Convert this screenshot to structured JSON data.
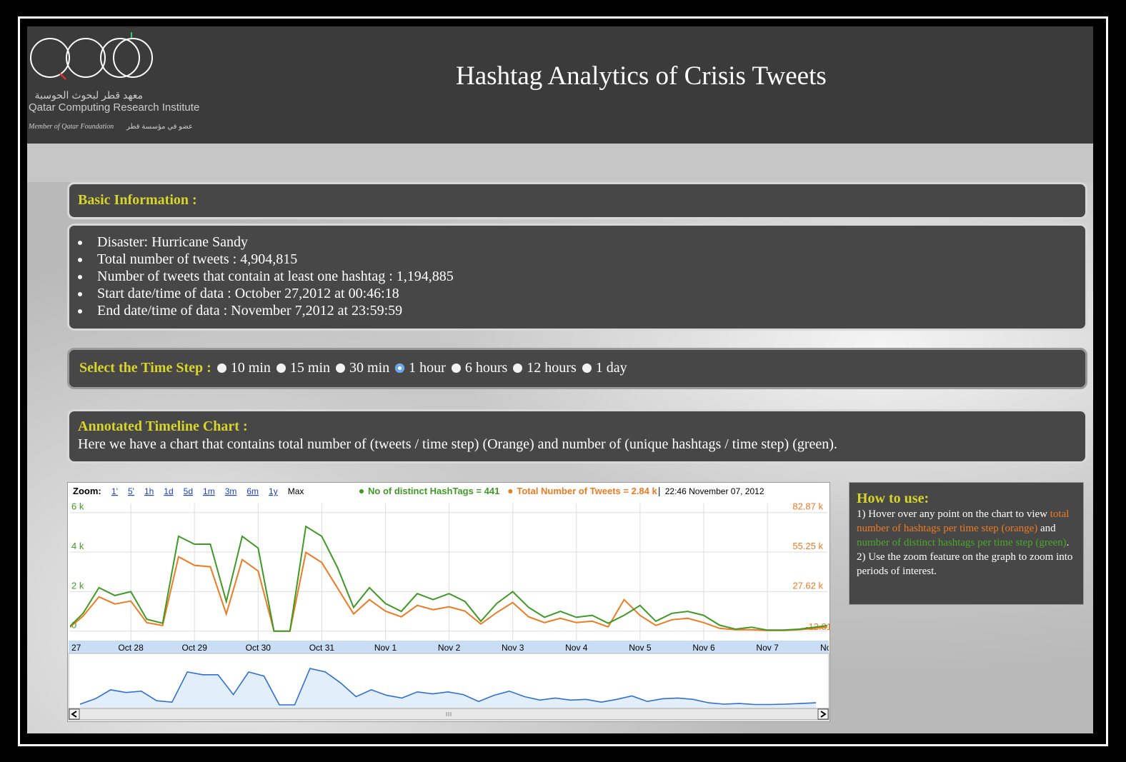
{
  "header": {
    "logo_arabic": "معهد قطر لبحوث الحوسبة",
    "logo_name": "Qatar Computing Research Institute",
    "logo_member": "Member of Qatar Foundation",
    "logo_member_arabic": "عضو في مؤسسة قطر",
    "title": "Hashtag Analytics of Crisis Tweets"
  },
  "basic_information": {
    "heading": "Basic Information :",
    "items": [
      "Disaster: Hurricane Sandy",
      "Total number of tweets : 4,904,815",
      "Number of tweets that contain at least one hashtag : 1,194,885",
      "Start date/time of data : October 27,2012 at 00:46:18",
      "End date/time of data : November 7,2012 at 23:59:59"
    ]
  },
  "time_step": {
    "label": "Select the Time Step :",
    "options": [
      "10 min",
      "15 min",
      "30 min",
      "1 hour",
      "6 hours",
      "12 hours",
      "1 day"
    ],
    "selected_index": 3
  },
  "timeline": {
    "heading": "Annotated Timeline Chart :",
    "description": "Here we have a chart that contains total number of (tweets / time step) (Orange) and number of (unique hashtags / time step) (green)."
  },
  "chart_data": {
    "type": "line",
    "zoom_label": "Zoom:",
    "zoom_options": [
      "1'",
      "5'",
      "1h",
      "1d",
      "5d",
      "1m",
      "3m",
      "6m",
      "1y",
      "Max"
    ],
    "timestamp": "22:46 November 07, 2012",
    "x_labels": [
      "27",
      "Oct 28",
      "Oct 29",
      "Oct 30",
      "Oct 31",
      "Nov 1",
      "Nov 2",
      "Nov 3",
      "Nov 4",
      "Nov 5",
      "Nov 6",
      "Nov 7",
      "No"
    ],
    "ylim": [
      -480,
      6460
    ],
    "yticks": [
      0,
      {
        "value": 2000,
        "label": "2 k"
      },
      {
        "value": 4000,
        "label": "4 k"
      },
      {
        "value": 6000,
        "label": "6 k"
      }
    ],
    "y2lim": [
      -6590,
      89200
    ],
    "y2ticks": [
      {
        "value": 27620,
        "label": "27.62 k"
      },
      {
        "value": 55250,
        "label": "55.25 k"
      },
      {
        "value": 82870,
        "label": "82.87 k"
      }
    ],
    "y2_edge_label": "-12.81",
    "grid": true,
    "series": [
      {
        "name": "No of distinct HashTags = 441",
        "color": "#3f9a25",
        "values": [
          100,
          900,
          2200,
          1800,
          2000,
          600,
          400,
          4800,
          4400,
          4400,
          1500,
          4800,
          4200,
          0,
          0,
          5300,
          4800,
          3200,
          1200,
          2200,
          1400,
          1000,
          1900,
          1600,
          1900,
          1500,
          500,
          1400,
          2000,
          1200,
          700,
          1000,
          700,
          800,
          400,
          800,
          1300,
          500,
          900,
          1000,
          800,
          300,
          100,
          200,
          50,
          50,
          100,
          200,
          300
        ]
      },
      {
        "name": "Total Number of Tweets = 2.84 k",
        "color": "#ee7a22",
        "axis": "y2",
        "values": [
          1200,
          10500,
          24000,
          19000,
          21000,
          6000,
          4000,
          52000,
          46000,
          45000,
          12000,
          50000,
          42000,
          0,
          0,
          55000,
          48000,
          30000,
          12000,
          22000,
          14000,
          10000,
          18000,
          15000,
          17000,
          14000,
          5000,
          13000,
          20000,
          10000,
          6000,
          9000,
          6000,
          7000,
          3000,
          22000,
          11000,
          4000,
          8000,
          9000,
          6000,
          2000,
          1000,
          1000,
          500,
          500,
          1000,
          2000,
          3000
        ]
      }
    ],
    "navigator_color": "#2f6fd6"
  },
  "how_to_use": {
    "heading": "How to use:",
    "step1_start": "1) Hover over any point on the chart to view ",
    "step1_orange": "total number of hashtags per time step (orange)",
    "step1_and": " and ",
    "step1_green": "number of distinct hashtags per time step (green)",
    "step1_end": ".",
    "step2": "2) Use the zoom feature on the graph to zoom into periods of interest."
  }
}
